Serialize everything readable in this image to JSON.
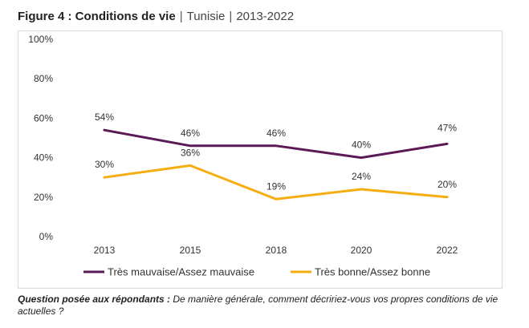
{
  "title": {
    "bold": "Figure 4 : Conditions de vie",
    "separator": "|",
    "country": "Tunisie",
    "period": "2013-2022"
  },
  "footnote": {
    "label": "Question posée aux répondants :",
    "text": "De manière générale, comment décririez-vous vos propres conditions de vie actuelles ?"
  },
  "chart_data": {
    "type": "line",
    "title": "",
    "xlabel": "",
    "ylabel": "",
    "x": [
      "2013",
      "2015",
      "2018",
      "2020",
      "2022"
    ],
    "ylim": [
      0,
      100
    ],
    "yticks": [
      0,
      20,
      40,
      60,
      80,
      100
    ],
    "ytick_labels": [
      "0%",
      "20%",
      "40%",
      "60%",
      "80%",
      "100%"
    ],
    "grid": false,
    "legend_position": "bottom",
    "series": [
      {
        "name": "Très mauvaise/Assez mauvaise",
        "color": "#5b1a55",
        "values": [
          54,
          46,
          46,
          40,
          47
        ],
        "labels": [
          "54%",
          "46%",
          "46%",
          "40%",
          "47%"
        ]
      },
      {
        "name": "Très bonne/Assez bonne",
        "color": "#f5ad12",
        "values": [
          30,
          36,
          19,
          24,
          20
        ],
        "labels": [
          "30%",
          "36%",
          "19%",
          "24%",
          "20%"
        ]
      }
    ]
  }
}
